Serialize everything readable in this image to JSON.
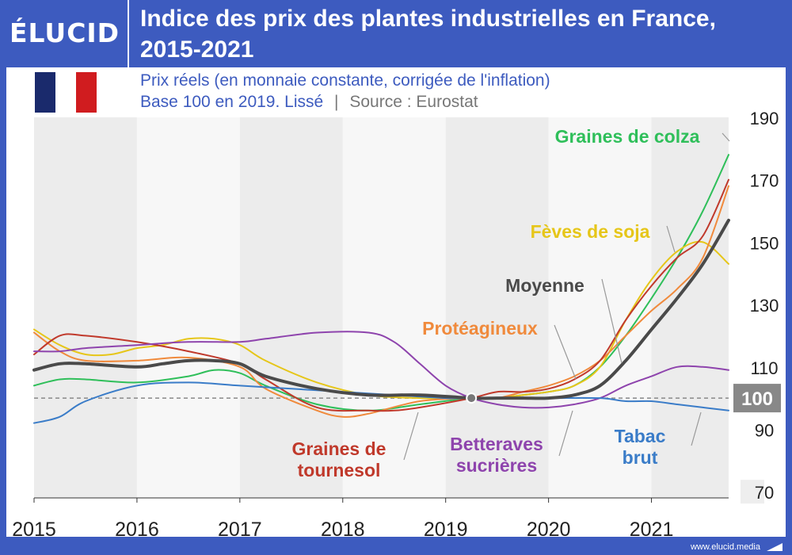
{
  "brand": {
    "logo": "ÉLUCID",
    "footer": "www.elucid.media"
  },
  "header": {
    "title_line1": "Indice des prix des plantes industrielles en France,",
    "title_line2": "2015-2021"
  },
  "subtitle": {
    "line1": "Prix réels (en monnaie constante, corrigée de l'inflation)",
    "line2_base": "Base 100 en 2019. Lissé",
    "line2_sep": "|",
    "line2_source": "Source : Eurostat"
  },
  "colors": {
    "brand_blue": "#3d5bbf",
    "colza": "#2fbf5a",
    "soja": "#e6c619",
    "moyenne": "#4a4a4a",
    "proteagineux": "#f08a3c",
    "tournesol": "#c0392b",
    "betteraves": "#8e44ad",
    "tabac": "#3a7cc8",
    "flag_blue": "#1a2a6c",
    "flag_red": "#d01c1f"
  },
  "chart_data": {
    "type": "line",
    "title": "Indice des prix des plantes industrielles en France, 2015-2021",
    "x_ticks": [
      "2015",
      "2016",
      "2017",
      "2018",
      "2019",
      "2020",
      "2021"
    ],
    "y_ticks": [
      190,
      170,
      150,
      130,
      110,
      90,
      70
    ],
    "baseline_label": "100",
    "ylim": [
      68,
      190
    ],
    "xlim": [
      2015,
      2021.75
    ],
    "series": [
      {
        "name": "Graines de colza",
        "color_key": "colza",
        "width": 2,
        "points": [
          [
            2015,
            104
          ],
          [
            2015.25,
            106
          ],
          [
            2015.5,
            106
          ],
          [
            2016,
            105
          ],
          [
            2016.5,
            107
          ],
          [
            2016.75,
            109
          ],
          [
            2017,
            108
          ],
          [
            2017.25,
            104
          ],
          [
            2017.75,
            98
          ],
          [
            2018.25,
            96
          ],
          [
            2018.75,
            98
          ],
          [
            2019.25,
            100
          ],
          [
            2019.5,
            100
          ],
          [
            2019.75,
            101
          ],
          [
            2020,
            102
          ],
          [
            2020.25,
            104
          ],
          [
            2020.5,
            110
          ],
          [
            2020.75,
            120
          ],
          [
            2021,
            132
          ],
          [
            2021.25,
            145
          ],
          [
            2021.5,
            160
          ],
          [
            2021.75,
            178
          ]
        ]
      },
      {
        "name": "Fèves de soja",
        "color_key": "soja",
        "width": 2,
        "points": [
          [
            2015,
            122
          ],
          [
            2015.25,
            117
          ],
          [
            2015.5,
            114
          ],
          [
            2015.75,
            114
          ],
          [
            2016,
            116
          ],
          [
            2016.25,
            117
          ],
          [
            2016.5,
            119
          ],
          [
            2016.75,
            119
          ],
          [
            2017,
            117
          ],
          [
            2017.25,
            112
          ],
          [
            2017.75,
            105
          ],
          [
            2018.25,
            101
          ],
          [
            2018.75,
            100
          ],
          [
            2019.25,
            100
          ],
          [
            2019.5,
            100
          ],
          [
            2019.75,
            101
          ],
          [
            2020,
            102
          ],
          [
            2020.25,
            104
          ],
          [
            2020.5,
            110
          ],
          [
            2020.75,
            125
          ],
          [
            2021,
            138
          ],
          [
            2021.25,
            147
          ],
          [
            2021.5,
            150
          ],
          [
            2021.75,
            143
          ]
        ]
      },
      {
        "name": "Protéagineux",
        "color_key": "proteagineux",
        "width": 2,
        "points": [
          [
            2015,
            121
          ],
          [
            2015.25,
            115
          ],
          [
            2015.5,
            112
          ],
          [
            2016,
            112
          ],
          [
            2016.5,
            113
          ],
          [
            2017,
            110
          ],
          [
            2017.25,
            103
          ],
          [
            2017.75,
            96
          ],
          [
            2018,
            94
          ],
          [
            2018.25,
            95
          ],
          [
            2018.75,
            99
          ],
          [
            2019.25,
            100
          ],
          [
            2019.5,
            100
          ],
          [
            2019.75,
            102
          ],
          [
            2020,
            104
          ],
          [
            2020.25,
            107
          ],
          [
            2020.5,
            112
          ],
          [
            2020.75,
            120
          ],
          [
            2021,
            128
          ],
          [
            2021.25,
            135
          ],
          [
            2021.5,
            145
          ],
          [
            2021.75,
            168
          ]
        ]
      },
      {
        "name": "Graines de tournesol",
        "color_key": "tournesol",
        "width": 2,
        "points": [
          [
            2015,
            114
          ],
          [
            2015.25,
            120
          ],
          [
            2015.5,
            120
          ],
          [
            2016,
            118
          ],
          [
            2016.5,
            115
          ],
          [
            2017,
            111
          ],
          [
            2017.25,
            106
          ],
          [
            2017.75,
            97
          ],
          [
            2018.25,
            96
          ],
          [
            2018.5,
            96
          ],
          [
            2018.75,
            97
          ],
          [
            2019.25,
            100
          ],
          [
            2019.5,
            102
          ],
          [
            2019.75,
            102
          ],
          [
            2020,
            103
          ],
          [
            2020.25,
            106
          ],
          [
            2020.5,
            112
          ],
          [
            2020.75,
            125
          ],
          [
            2021,
            136
          ],
          [
            2021.25,
            145
          ],
          [
            2021.5,
            152
          ],
          [
            2021.75,
            170
          ]
        ]
      },
      {
        "name": "Moyenne",
        "color_key": "moyenne",
        "width": 4,
        "points": [
          [
            2015,
            109
          ],
          [
            2015.25,
            111
          ],
          [
            2015.5,
            111
          ],
          [
            2016,
            110
          ],
          [
            2016.25,
            111
          ],
          [
            2016.5,
            112
          ],
          [
            2016.75,
            112
          ],
          [
            2017,
            111
          ],
          [
            2017.25,
            107
          ],
          [
            2017.75,
            103
          ],
          [
            2018.25,
            101
          ],
          [
            2018.75,
            101
          ],
          [
            2019.25,
            100
          ],
          [
            2019.5,
            100
          ],
          [
            2019.75,
            100
          ],
          [
            2020,
            100
          ],
          [
            2020.25,
            101
          ],
          [
            2020.5,
            104
          ],
          [
            2020.75,
            112
          ],
          [
            2021,
            122
          ],
          [
            2021.25,
            132
          ],
          [
            2021.5,
            143
          ],
          [
            2021.75,
            157
          ]
        ]
      },
      {
        "name": "Betteraves sucrières",
        "color_key": "betteraves",
        "width": 2,
        "points": [
          [
            2015,
            115
          ],
          [
            2015.25,
            115
          ],
          [
            2015.5,
            116
          ],
          [
            2016,
            117
          ],
          [
            2016.5,
            118
          ],
          [
            2017,
            118
          ],
          [
            2017.25,
            119
          ],
          [
            2017.75,
            121
          ],
          [
            2018.25,
            121
          ],
          [
            2018.5,
            118
          ],
          [
            2018.75,
            111
          ],
          [
            2019,
            104
          ],
          [
            2019.25,
            100
          ],
          [
            2019.5,
            98
          ],
          [
            2019.75,
            97
          ],
          [
            2020,
            97
          ],
          [
            2020.25,
            98
          ],
          [
            2020.5,
            100
          ],
          [
            2020.75,
            104
          ],
          [
            2021,
            107
          ],
          [
            2021.25,
            110
          ],
          [
            2021.5,
            110
          ],
          [
            2021.75,
            109
          ]
        ]
      },
      {
        "name": "Tabac brut",
        "color_key": "tabac",
        "width": 2,
        "points": [
          [
            2015,
            92
          ],
          [
            2015.25,
            94
          ],
          [
            2015.5,
            99
          ],
          [
            2016,
            104
          ],
          [
            2016.5,
            105
          ],
          [
            2017,
            104
          ],
          [
            2017.5,
            103
          ],
          [
            2018,
            102
          ],
          [
            2018.5,
            101
          ],
          [
            2019,
            100
          ],
          [
            2019.25,
            100
          ],
          [
            2019.5,
            100
          ],
          [
            2020,
            100
          ],
          [
            2020.5,
            100
          ],
          [
            2020.75,
            99
          ],
          [
            2021,
            99
          ],
          [
            2021.25,
            98
          ],
          [
            2021.5,
            97
          ],
          [
            2021.75,
            96
          ]
        ]
      }
    ],
    "annotations": [
      {
        "lines": [
          "Graines de colza"
        ],
        "color_key": "colza"
      },
      {
        "lines": [
          "Fèves de soja"
        ],
        "color_key": "soja"
      },
      {
        "lines": [
          "Moyenne"
        ],
        "color_key": "moyenne"
      },
      {
        "lines": [
          "Protéagineux"
        ],
        "color_key": "proteagineux"
      },
      {
        "lines": [
          "Graines de",
          "tournesol"
        ],
        "color_key": "tournesol"
      },
      {
        "lines": [
          "Betteraves",
          "sucrières"
        ],
        "color_key": "betteraves"
      },
      {
        "lines": [
          "Tabac",
          "brut"
        ],
        "color_key": "tabac"
      }
    ]
  }
}
